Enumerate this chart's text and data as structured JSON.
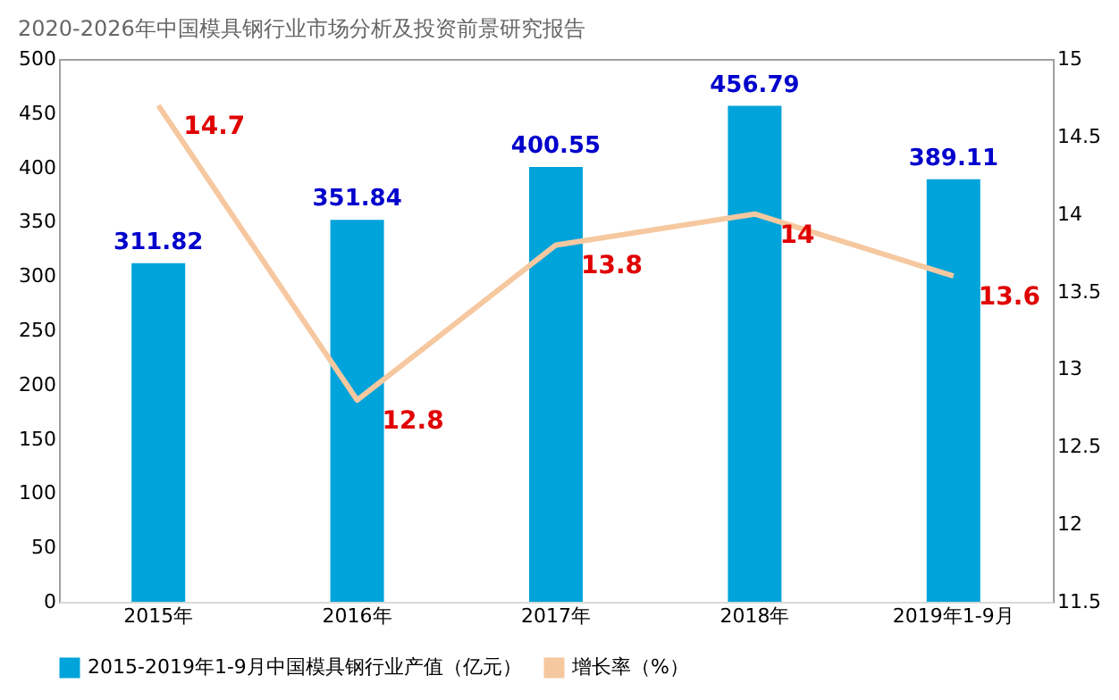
{
  "chart_data": {
    "type": "bar",
    "title": "2020-2026年中国模具钢行业市场分析及投资前景研究报告",
    "categories": [
      "2015年",
      "2016年",
      "2017年",
      "2018年",
      "2019年1-9月"
    ],
    "series": [
      {
        "name": "2015-2019年1-9月中国模具钢行业产值（亿元）",
        "color": "#00a3da",
        "values": [
          311.82,
          351.84,
          400.55,
          456.79,
          389.11
        ]
      },
      {
        "name": "增长率（%）",
        "type": "line",
        "axis": "y2",
        "color": "#f6c8a0",
        "values": [
          14.7,
          12.8,
          13.8,
          14,
          13.6
        ]
      }
    ],
    "ylim": [
      0,
      500
    ],
    "yticks": [
      0,
      50,
      100,
      150,
      200,
      250,
      300,
      350,
      400,
      450,
      500
    ],
    "y2lim": [
      11.5,
      15
    ],
    "y2ticks": [
      11.5,
      12,
      12.5,
      13,
      13.5,
      14,
      14.5,
      15
    ],
    "data_labels": true,
    "legend": "bottom",
    "grid": false,
    "marker": "none"
  }
}
